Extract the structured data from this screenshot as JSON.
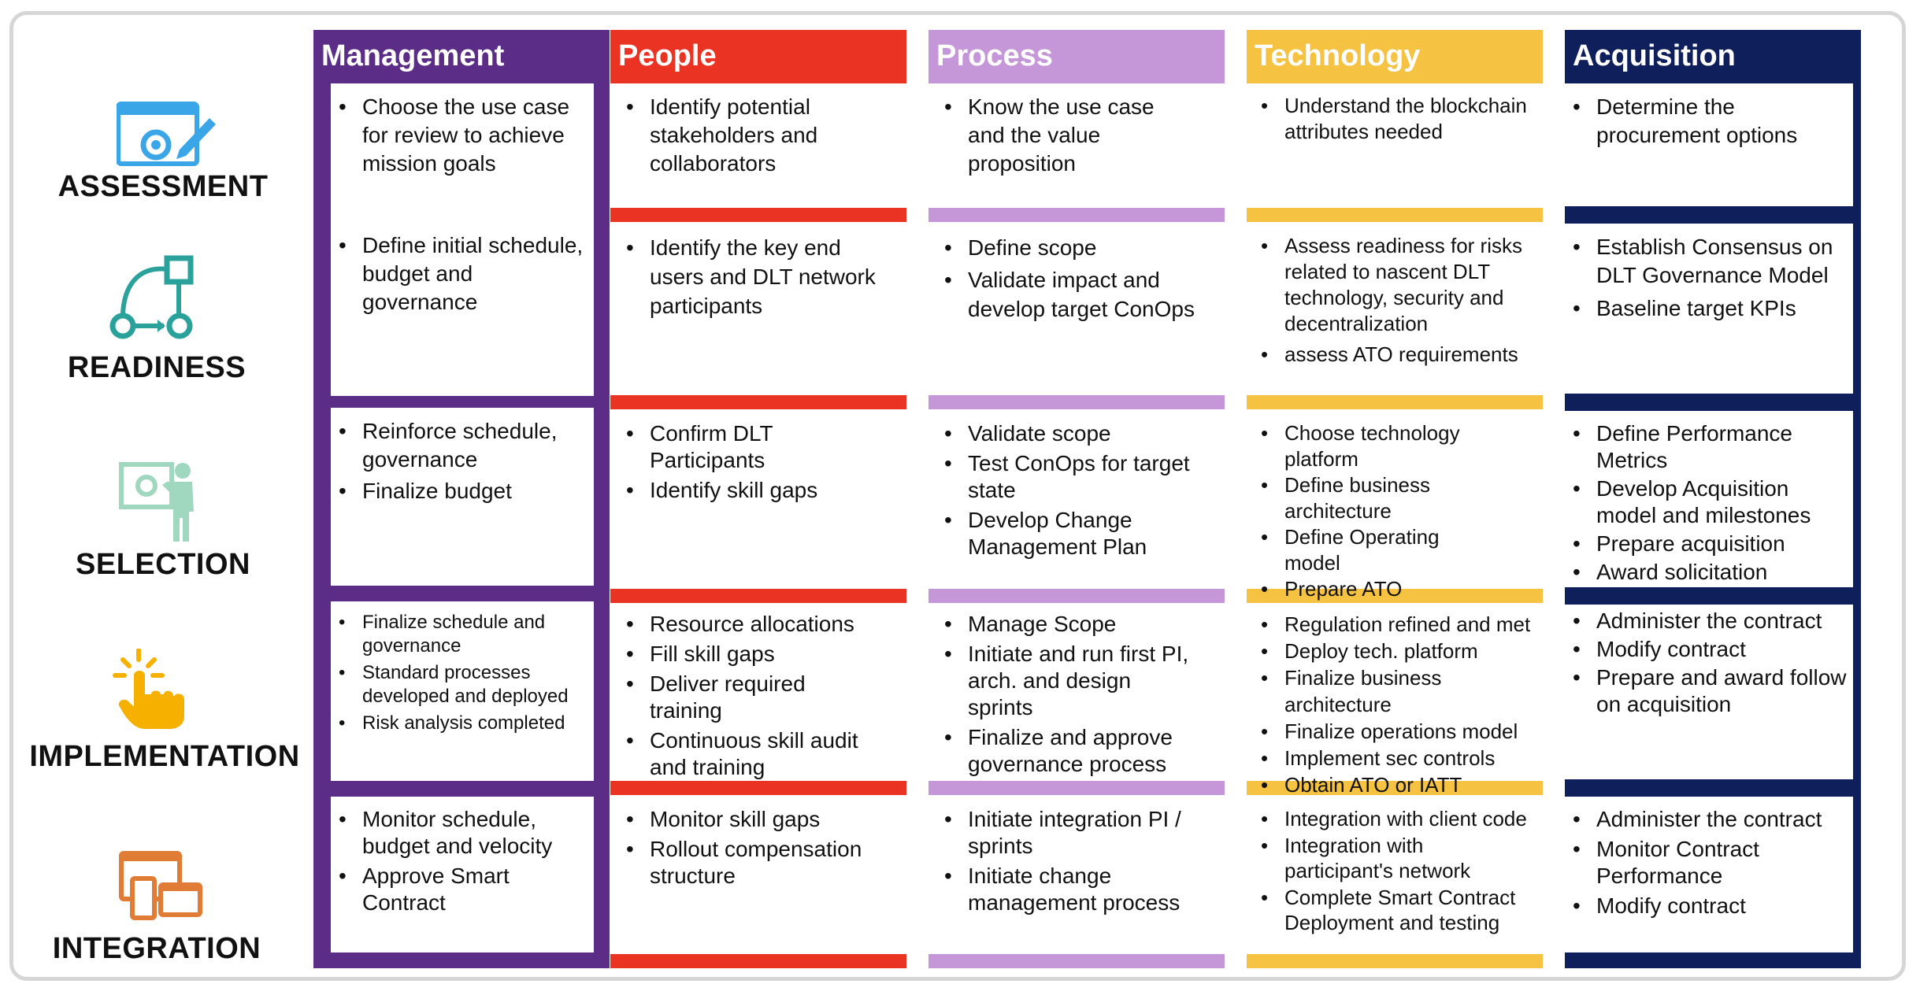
{
  "stages": [
    {
      "label": "ASSESSMENT",
      "icon": "browser-settings-edit-icon"
    },
    {
      "label": "READINESS",
      "icon": "workflow-diagram-icon"
    },
    {
      "label": "SELECTION",
      "icon": "presenter-board-icon"
    },
    {
      "label": "IMPLEMENTATION",
      "icon": "tap-hand-icon"
    },
    {
      "label": "INTEGRATION",
      "icon": "multi-device-icon"
    }
  ],
  "columns": [
    {
      "title": "Management",
      "color": "#5b2d86",
      "cells": [
        [
          "Choose the use case for review to achieve mission goals"
        ],
        [
          "Define initial schedule, budget and governance"
        ],
        [
          "Reinforce schedule, governance",
          "Finalize budget"
        ],
        [
          "Finalize schedule and governance",
          "Standard processes developed and deployed",
          "Risk analysis completed"
        ],
        [
          "Monitor schedule, budget and velocity",
          "Approve Smart Contract"
        ]
      ]
    },
    {
      "title": "People",
      "color": "#ea3323",
      "cells": [
        [
          "Identify potential stakeholders and collaborators"
        ],
        [
          "Identify the key end users and DLT network participants"
        ],
        [
          "Confirm DLT Participants",
          "Identify skill gaps"
        ],
        [
          "Resource allocations",
          "Fill skill gaps",
          "Deliver required training",
          "Continuous skill audit and training"
        ],
        [
          "Monitor skill gaps",
          "Rollout compensation structure"
        ]
      ]
    },
    {
      "title": "Process",
      "color": "#c597d9",
      "cells": [
        [
          "Know the use case and the value proposition"
        ],
        [
          "Define scope",
          "Validate impact and develop target ConOps"
        ],
        [
          "Validate scope",
          "Test ConOps for target state",
          "Develop Change Management Plan"
        ],
        [
          "Manage Scope",
          "Initiate and run first PI, arch. and design sprints",
          "Finalize and approve governance process"
        ],
        [
          "Initiate integration PI / sprints",
          "Initiate change management process"
        ]
      ]
    },
    {
      "title": "Technology",
      "color": "#f5c242",
      "cells": [
        [
          "Understand the blockchain attributes needed"
        ],
        [
          "Assess readiness for risks related to nascent DLT technology, security and decentralization",
          "assess ATO requirements"
        ],
        [
          "Choose technology platform",
          "Define business architecture",
          "Define Operating model",
          "Prepare ATO"
        ],
        [
          "Regulation refined and met",
          "Deploy tech. platform",
          "Finalize business architecture",
          "Finalize operations model",
          "Implement sec controls",
          "Obtain ATO or IATT"
        ],
        [
          "Integration with client code",
          "Integration with participant's network",
          "Complete Smart Contract Deployment and testing"
        ]
      ]
    },
    {
      "title": "Acquisition",
      "color": "#0e1f5b",
      "cells": [
        [
          "Determine the procurement  options"
        ],
        [
          "Establish Consensus on DLT Governance Model",
          "Baseline target KPIs"
        ],
        [
          "Define Performance Metrics",
          "Develop Acquisition model and milestones",
          "Prepare acquisition",
          "Award solicitation"
        ],
        [
          "Administer the contract",
          "Modify contract",
          "Prepare and award follow on acquisition"
        ],
        [
          "Administer the contract",
          "Monitor Contract Performance",
          "Modify contract"
        ]
      ]
    }
  ]
}
